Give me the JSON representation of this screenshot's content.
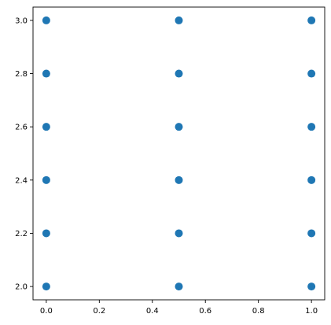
{
  "chart_data": {
    "type": "scatter",
    "title": "",
    "xlabel": "",
    "ylabel": "",
    "xlim": [
      -0.05,
      1.05
    ],
    "ylim": [
      1.95,
      3.05
    ],
    "x_ticks": [
      0.0,
      0.2,
      0.4,
      0.6,
      0.8,
      1.0
    ],
    "x_tick_labels": [
      "0.0",
      "0.2",
      "0.4",
      "0.6",
      "0.8",
      "1.0"
    ],
    "y_ticks": [
      2.0,
      2.2,
      2.4,
      2.6,
      2.8,
      3.0
    ],
    "y_tick_labels": [
      "2.0",
      "2.2",
      "2.4",
      "2.6",
      "2.8",
      "3.0"
    ],
    "grid": false,
    "legend": "none",
    "series": [
      {
        "color": "#1f77b4",
        "points": [
          {
            "x": 0.0,
            "y": 2.0
          },
          {
            "x": 0.0,
            "y": 2.2
          },
          {
            "x": 0.0,
            "y": 2.4
          },
          {
            "x": 0.0,
            "y": 2.6
          },
          {
            "x": 0.0,
            "y": 2.8
          },
          {
            "x": 0.0,
            "y": 3.0
          },
          {
            "x": 0.5,
            "y": 2.0
          },
          {
            "x": 0.5,
            "y": 2.2
          },
          {
            "x": 0.5,
            "y": 2.4
          },
          {
            "x": 0.5,
            "y": 2.6
          },
          {
            "x": 0.5,
            "y": 2.8
          },
          {
            "x": 0.5,
            "y": 3.0
          },
          {
            "x": 1.0,
            "y": 2.0
          },
          {
            "x": 1.0,
            "y": 2.2
          },
          {
            "x": 1.0,
            "y": 2.4
          },
          {
            "x": 1.0,
            "y": 2.6
          },
          {
            "x": 1.0,
            "y": 2.8
          },
          {
            "x": 1.0,
            "y": 3.0
          }
        ]
      }
    ]
  }
}
